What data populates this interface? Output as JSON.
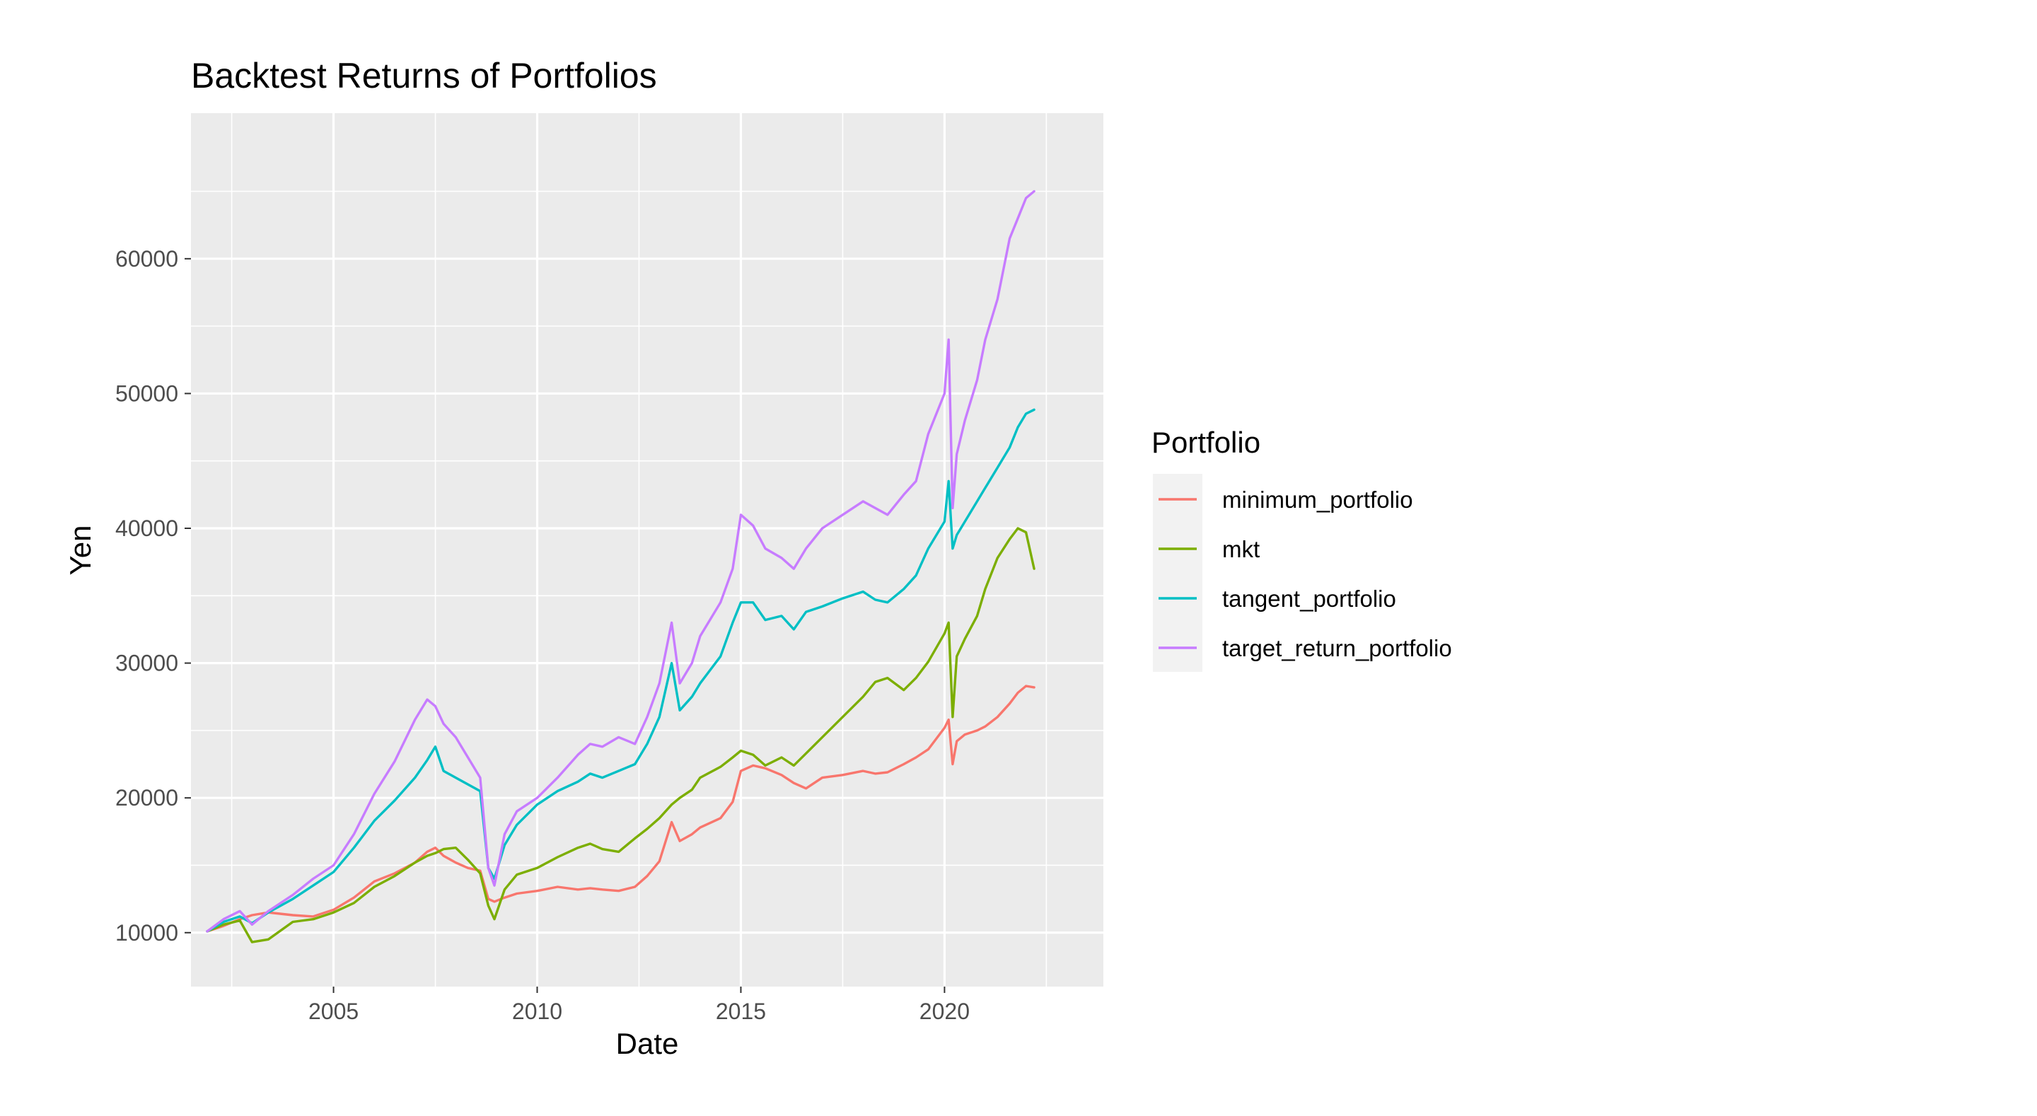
{
  "chart_data": {
    "type": "line",
    "title": "Backtest Returns of Portfolios",
    "xlabel": "Date",
    "ylabel": "Yen",
    "x_ticks": [
      "2005",
      "2010",
      "2015",
      "2020"
    ],
    "y_ticks": [
      "10000",
      "20000",
      "30000",
      "40000",
      "50000",
      "60000"
    ],
    "xlim": [
      2001.5,
      2023.9
    ],
    "ylim": [
      6000,
      70800
    ],
    "grid": true,
    "legend_title": "Portfolio",
    "legend_position": "right",
    "x": [
      2001.9,
      2002.3,
      2002.7,
      2003.0,
      2003.4,
      2004.0,
      2004.5,
      2005.0,
      2005.5,
      2006.0,
      2006.5,
      2007.0,
      2007.3,
      2007.5,
      2007.7,
      2008.0,
      2008.3,
      2008.6,
      2008.8,
      2008.95,
      2009.2,
      2009.5,
      2010.0,
      2010.5,
      2011.0,
      2011.3,
      2011.6,
      2012.0,
      2012.4,
      2012.7,
      2013.0,
      2013.3,
      2013.5,
      2013.8,
      2014.0,
      2014.5,
      2014.8,
      2015.0,
      2015.3,
      2015.6,
      2016.0,
      2016.3,
      2016.6,
      2017.0,
      2017.5,
      2018.0,
      2018.3,
      2018.6,
      2019.0,
      2019.3,
      2019.6,
      2020.0,
      2020.1,
      2020.2,
      2020.3,
      2020.5,
      2020.8,
      2021.0,
      2021.3,
      2021.6,
      2021.8,
      2022.0,
      2022.2
    ],
    "series": [
      {
        "name": "minimum_portfolio",
        "color": "#F8766D",
        "values": [
          10100,
          10500,
          11000,
          11300,
          11500,
          11300,
          11200,
          11700,
          12600,
          13800,
          14400,
          15200,
          16000,
          16300,
          15700,
          15200,
          14800,
          14600,
          12500,
          12300,
          12600,
          12900,
          13100,
          13400,
          13200,
          13300,
          13200,
          13100,
          13400,
          14200,
          15300,
          18200,
          16800,
          17300,
          17800,
          18500,
          19700,
          22000,
          22400,
          22200,
          21700,
          21100,
          20700,
          21500,
          21700,
          22000,
          21800,
          21900,
          22500,
          23000,
          23600,
          25200,
          25800,
          22500,
          24200,
          24700,
          25000,
          25300,
          26000,
          27000,
          27800,
          28300,
          28200
        ]
      },
      {
        "name": "mkt",
        "color": "#7CAE00",
        "values": [
          10100,
          10600,
          10900,
          9300,
          9500,
          10800,
          11000,
          11500,
          12200,
          13400,
          14200,
          15200,
          15700,
          15900,
          16200,
          16300,
          15400,
          14400,
          12000,
          11000,
          13200,
          14300,
          14800,
          15600,
          16300,
          16600,
          16200,
          16000,
          17000,
          17700,
          18500,
          19500,
          20000,
          20600,
          21500,
          22300,
          23000,
          23500,
          23200,
          22400,
          23000,
          22400,
          23300,
          24500,
          26000,
          27500,
          28600,
          28900,
          28000,
          28900,
          30100,
          32200,
          33000,
          26000,
          30500,
          31800,
          33500,
          35500,
          37800,
          39200,
          40000,
          39700,
          37000
        ]
      },
      {
        "name": "tangent_portfolio",
        "color": "#00BFC4",
        "values": [
          10100,
          10800,
          11200,
          10700,
          11500,
          12500,
          13500,
          14500,
          16300,
          18300,
          19800,
          21500,
          22800,
          23800,
          22000,
          21500,
          21000,
          20500,
          14800,
          14000,
          16500,
          18000,
          19500,
          20500,
          21200,
          21800,
          21500,
          22000,
          22500,
          24000,
          26000,
          30000,
          26500,
          27500,
          28500,
          30500,
          33000,
          34500,
          34500,
          33200,
          33500,
          32500,
          33800,
          34200,
          34800,
          35300,
          34700,
          34500,
          35500,
          36500,
          38500,
          40500,
          43500,
          38500,
          39500,
          40500,
          42000,
          43000,
          44500,
          46000,
          47500,
          48500,
          48800
        ]
      },
      {
        "name": "target_return_portfolio",
        "color": "#C77CFF",
        "values": [
          10100,
          11000,
          11600,
          10600,
          11600,
          12800,
          14000,
          15000,
          17300,
          20300,
          22700,
          25800,
          27300,
          26800,
          25500,
          24500,
          23000,
          21500,
          14800,
          13500,
          17300,
          19000,
          20000,
          21500,
          23200,
          24000,
          23800,
          24500,
          24000,
          26000,
          28500,
          33000,
          28500,
          30000,
          32000,
          34500,
          37000,
          41000,
          40200,
          38500,
          37800,
          37000,
          38500,
          40000,
          41000,
          42000,
          41500,
          41000,
          42500,
          43500,
          47000,
          50000,
          54000,
          41500,
          45500,
          48000,
          51000,
          54000,
          57000,
          61500,
          63000,
          64500,
          65000
        ]
      }
    ]
  }
}
